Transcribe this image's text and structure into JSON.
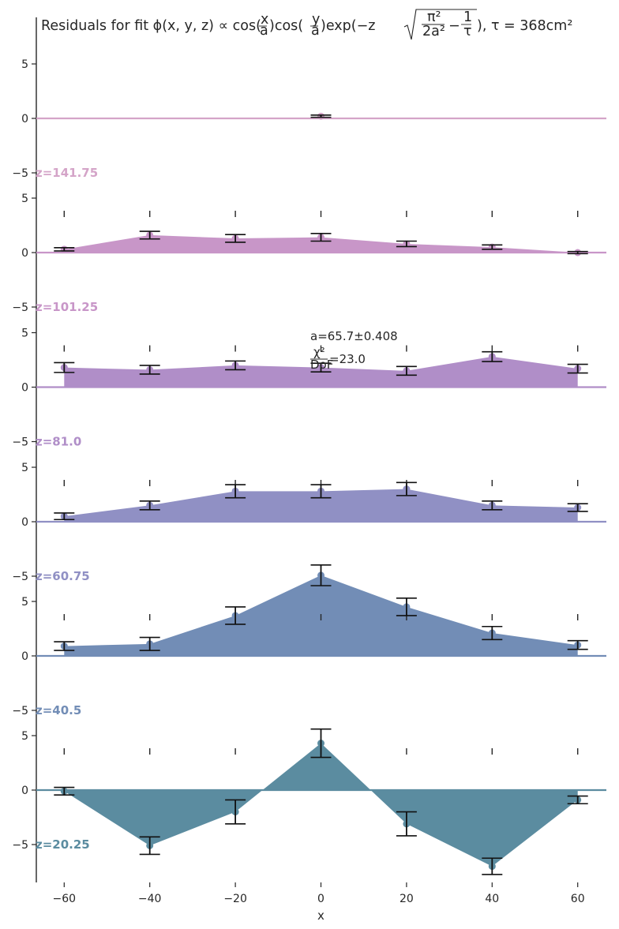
{
  "chart_data": {
    "type": "area",
    "title": "Residuals for fit ϕ(x,y,z) ∝ cos(x/a)cos(y/a)exp(−z√(π²/2a² − 1/τ)), τ = 368cm²",
    "title_parts": {
      "lead": "Residuals for fit ",
      "phi": "ϕ(x, y, z) ∝ cos(",
      "x_over_a_num": "x",
      "x_over_a_den": "a",
      "cos2": ")cos(",
      "y_over_a_num": "y",
      "y_over_a_den": "a",
      "exp": ")exp(−z",
      "pi2": "π²",
      "two_a2": "2a²",
      "minus": "−",
      "one": "1",
      "tau": "τ",
      "tail": "), τ = 368cm²"
    },
    "xlabel": "x",
    "ylabel": "",
    "xlim": [
      -67,
      67
    ],
    "ylim": [
      -8.5,
      8.5
    ],
    "x_ticks": [
      -60,
      -40,
      -20,
      0,
      20,
      40,
      60
    ],
    "y_ticks": [
      -5,
      0,
      5
    ],
    "annotation": {
      "a_text": "a=65.7±0.408",
      "chi_num": "χ²",
      "chi_den": "DoF",
      "chi_value": "=23.0"
    },
    "panels": [
      {
        "label": "z=141.75",
        "color": "#d4a4c8",
        "x": [
          0
        ],
        "y": [
          0.2
        ],
        "err": [
          0.1
        ]
      },
      {
        "label": "z=101.25",
        "color": "#c896c8",
        "x": [
          -60,
          -40,
          -20,
          0,
          20,
          40,
          60
        ],
        "y": [
          0.3,
          1.6,
          1.3,
          1.4,
          0.8,
          0.5,
          0.0
        ],
        "err": [
          0.15,
          0.35,
          0.35,
          0.35,
          0.25,
          0.2,
          0.1
        ]
      },
      {
        "label": "z=101.25_",
        "display_label": "z=81.0",
        "color": "#b08ec8",
        "x": [
          -60,
          -40,
          -20,
          0,
          20,
          40,
          60
        ],
        "y": [
          1.8,
          1.6,
          2.0,
          1.8,
          1.5,
          2.8,
          1.7
        ],
        "err": [
          0.45,
          0.4,
          0.4,
          0.4,
          0.4,
          0.45,
          0.4
        ]
      },
      {
        "label": "z=60.75",
        "color": "#9090c4",
        "x": [
          -60,
          -40,
          -20,
          0,
          20,
          40,
          60
        ],
        "y": [
          0.5,
          1.5,
          2.8,
          2.8,
          3.0,
          1.5,
          1.3
        ],
        "err": [
          0.3,
          0.4,
          0.6,
          0.6,
          0.6,
          0.4,
          0.35
        ]
      },
      {
        "label": "z=40.5",
        "color": "#728db6",
        "x": [
          -60,
          -40,
          -20,
          0,
          20,
          40,
          60
        ],
        "y": [
          0.9,
          1.1,
          3.7,
          7.4,
          4.5,
          2.1,
          1.0
        ],
        "err": [
          0.4,
          0.6,
          0.8,
          0.95,
          0.8,
          0.6,
          0.4
        ]
      },
      {
        "label": "z=20.25",
        "color": "#5b8ca0",
        "x": [
          -60,
          -40,
          -20,
          0,
          20,
          40,
          60
        ],
        "y": [
          -0.1,
          -5.1,
          -2.0,
          4.3,
          -3.1,
          -7.0,
          -0.9
        ],
        "err": [
          0.35,
          0.8,
          1.1,
          1.3,
          1.1,
          0.75,
          0.35
        ]
      }
    ]
  }
}
